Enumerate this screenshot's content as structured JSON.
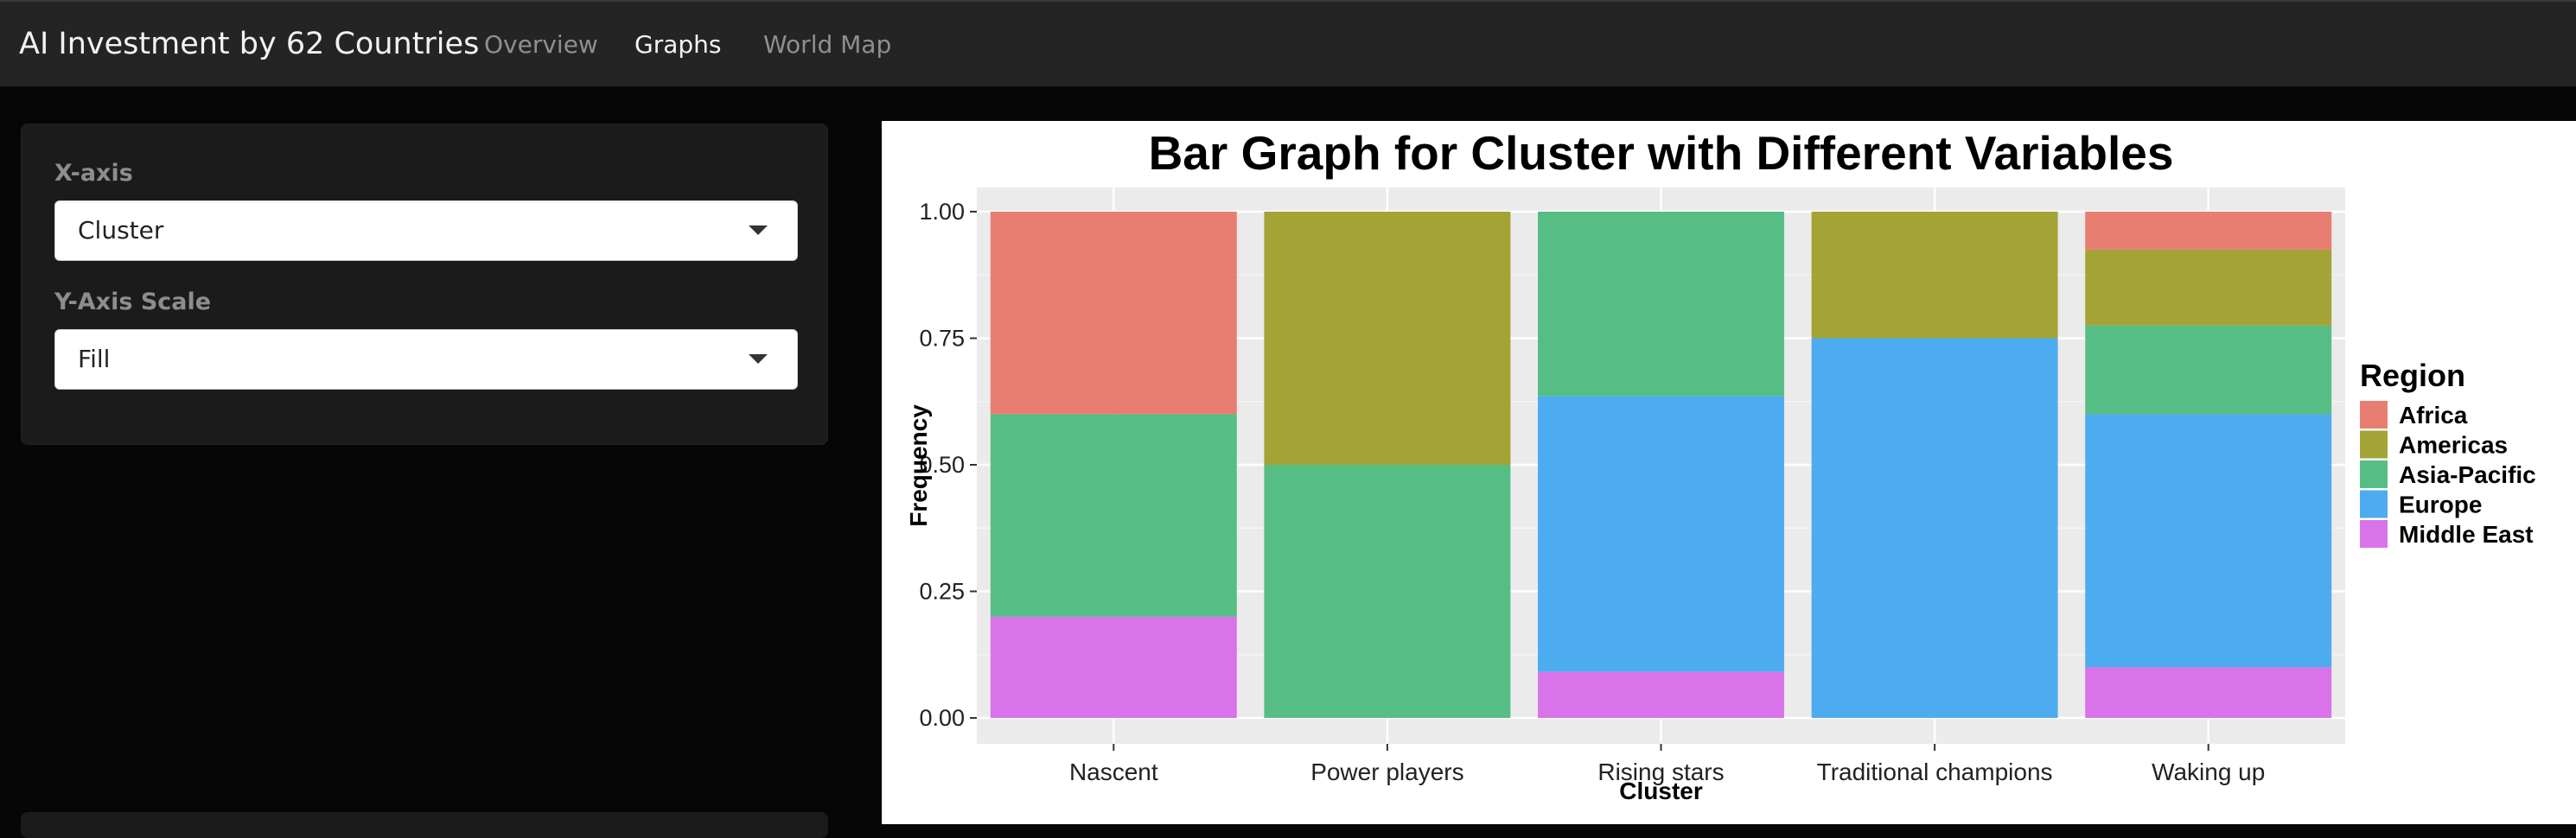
{
  "app": {
    "title": "AI Investment by 62 Countries",
    "nav": [
      {
        "label": "Overview",
        "active": false
      },
      {
        "label": "Graphs",
        "active": true
      },
      {
        "label": "World Map",
        "active": false
      }
    ]
  },
  "controls": {
    "x_axis": {
      "label": "X-axis",
      "value": "Cluster"
    },
    "y_scale": {
      "label": "Y-Axis Scale",
      "value": "Fill"
    }
  },
  "colors": {
    "background": "#060606",
    "navbar": "#242424",
    "panel": "#1b1b1b",
    "plot_panel": "#ebebeb"
  },
  "chart_data": {
    "type": "bar",
    "stacked": true,
    "position": "fill",
    "title": "Bar Graph for Cluster with Different Variables",
    "xlabel": "Cluster",
    "ylabel": "Frequency",
    "ylim": [
      0,
      1
    ],
    "yticks": [
      "0.00",
      "0.25",
      "0.50",
      "0.75",
      "1.00"
    ],
    "categories": [
      "Nascent",
      "Power players",
      "Rising stars",
      "Traditional champions",
      "Waking up"
    ],
    "legend_title": "Region",
    "legend_position": "right",
    "grid": true,
    "series": [
      {
        "name": "Africa",
        "color": "#E87E72",
        "values": [
          0.4,
          0.0,
          0.0,
          0.0,
          0.075
        ]
      },
      {
        "name": "Americas",
        "color": "#A3A336",
        "values": [
          0.0,
          0.5,
          0.0,
          0.25,
          0.15
        ]
      },
      {
        "name": "Asia-Pacific",
        "color": "#56BD84",
        "values": [
          0.4,
          0.5,
          0.364,
          0.0,
          0.175
        ]
      },
      {
        "name": "Europe",
        "color": "#4DACEF",
        "values": [
          0.0,
          0.0,
          0.545,
          0.75,
          0.5
        ]
      },
      {
        "name": "Middle East",
        "color": "#D873E9",
        "values": [
          0.2,
          0.0,
          0.091,
          0.0,
          0.1
        ]
      }
    ]
  }
}
